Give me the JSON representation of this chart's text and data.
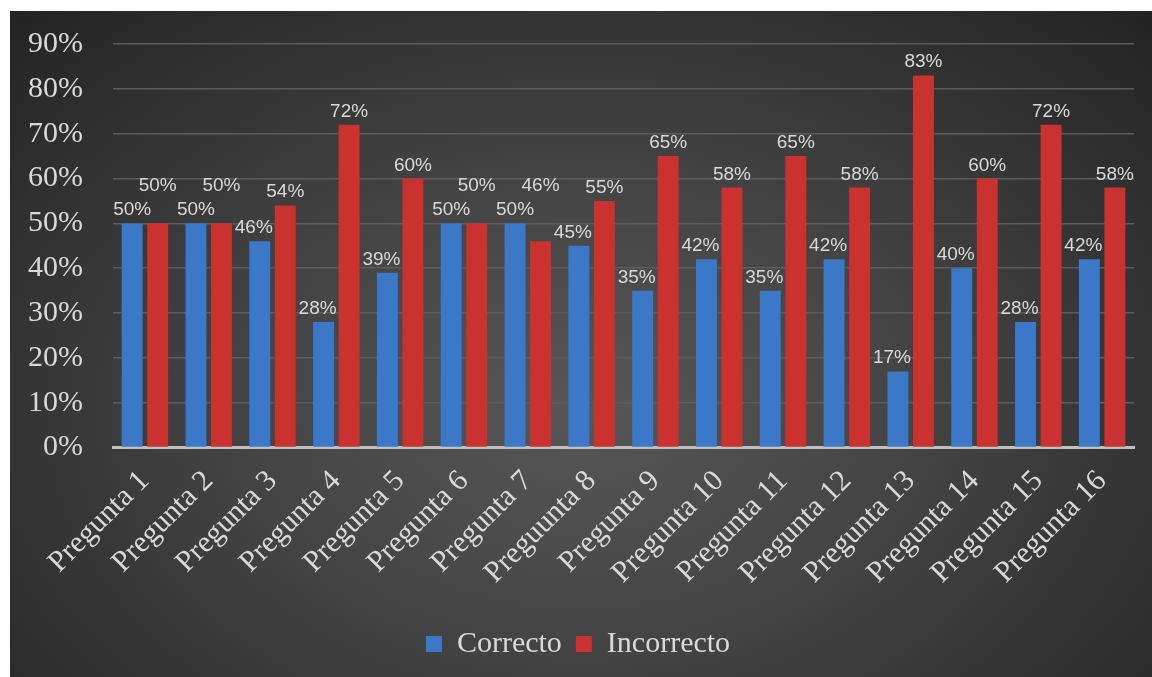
{
  "chart_data": {
    "type": "bar",
    "categories": [
      "Pregunta 1",
      "Pregunta 2",
      "Pregunta 3",
      "Pregunta 4",
      "Pregunta 5",
      "Pregunta 6",
      "Pregunta 7",
      "Preguunta 8",
      "Pregunta 9",
      "Pregunta 10",
      "Pregunta 11",
      "Pregunta 12",
      "Pregunta 13",
      "Pregunta 14",
      "Pregunta 15",
      "Pregunta 16"
    ],
    "series": [
      {
        "name": "Correcto",
        "color": "#3b78c8",
        "values": [
          50,
          50,
          46,
          28,
          39,
          50,
          50,
          45,
          35,
          42,
          35,
          42,
          17,
          40,
          28,
          42
        ],
        "value_labels": [
          "50%",
          "50%",
          "46%",
          "28%",
          "39%",
          "50%",
          "50%",
          "45%",
          "35%",
          "42%",
          "35%",
          "42%",
          "17%",
          "40%",
          "28%",
          "42%"
        ]
      },
      {
        "name": "Incorrecto",
        "color": "#c9322e",
        "values": [
          50,
          50,
          54,
          72,
          60,
          50,
          46,
          55,
          65,
          58,
          65,
          58,
          83,
          60,
          72,
          58
        ],
        "value_labels": [
          "50%",
          "50%",
          "54%",
          "72%",
          "60%",
          "50%",
          "46%",
          "55%",
          "65%",
          "58%",
          "65%",
          "58%",
          "83%",
          "60%",
          "72%",
          "58%"
        ]
      }
    ],
    "ylim": [
      0,
      90
    ],
    "yticks": [
      {
        "value": 0,
        "label": "0%"
      },
      {
        "value": 10,
        "label": "10%"
      },
      {
        "value": 20,
        "label": "20%"
      },
      {
        "value": 30,
        "label": "30%"
      },
      {
        "value": 40,
        "label": "40%"
      },
      {
        "value": 50,
        "label": "50%"
      },
      {
        "value": 60,
        "label": "60%"
      },
      {
        "value": 70,
        "label": "70%"
      },
      {
        "value": 80,
        "label": "80%"
      },
      {
        "value": 90,
        "label": "90%"
      }
    ],
    "grid": "y",
    "legend": "bottom"
  }
}
